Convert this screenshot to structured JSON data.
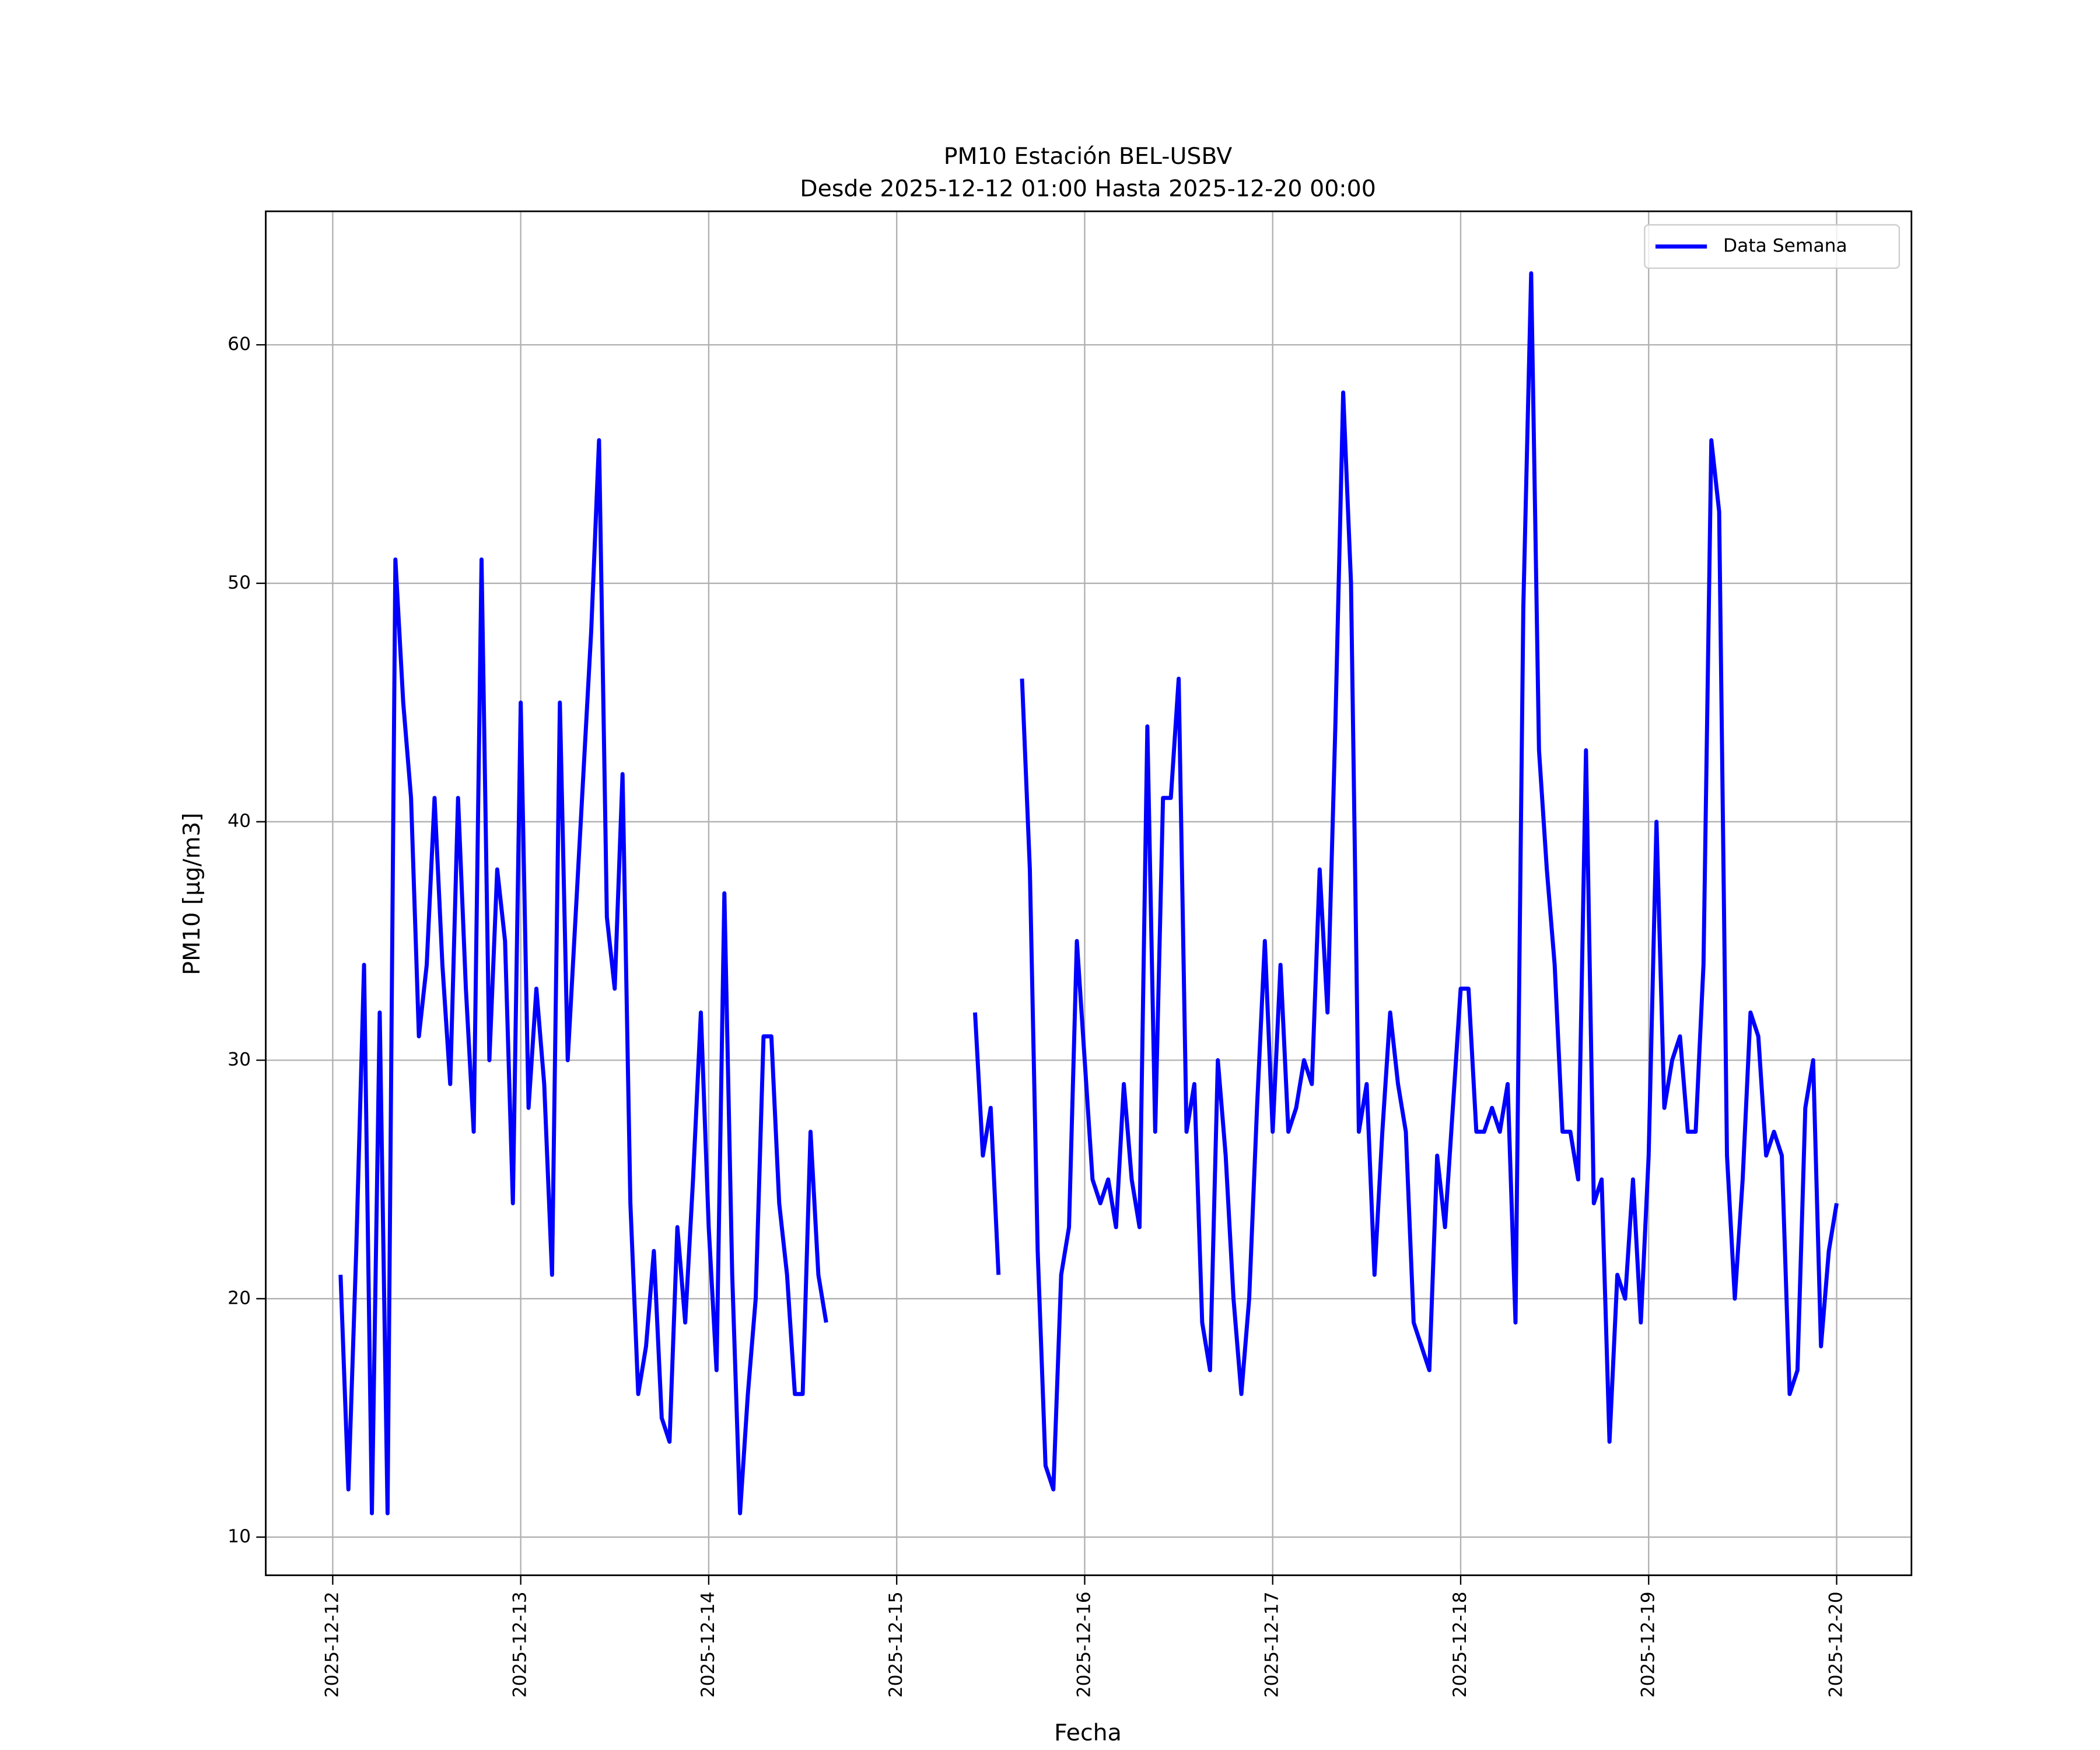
{
  "chart_data": {
    "type": "line",
    "title": [
      "PM10 Estación BEL-USBV",
      "Desde 2025-12-12 01:00 Hasta 2025-12-20 00:00"
    ],
    "xlabel": "Fecha",
    "ylabel": "PM10 [μg/m3]",
    "x": [
      "2025-12-12 01:00",
      "2025-12-12 02:00",
      "2025-12-12 03:00",
      "2025-12-12 04:00",
      "2025-12-12 05:00",
      "2025-12-12 06:00",
      "2025-12-12 07:00",
      "2025-12-12 08:00",
      "2025-12-12 09:00",
      "2025-12-12 10:00",
      "2025-12-12 11:00",
      "2025-12-12 12:00",
      "2025-12-12 13:00",
      "2025-12-12 14:00",
      "2025-12-12 15:00",
      "2025-12-12 16:00",
      "2025-12-12 17:00",
      "2025-12-12 18:00",
      "2025-12-12 19:00",
      "2025-12-12 20:00",
      "2025-12-12 21:00",
      "2025-12-12 22:00",
      "2025-12-12 23:00",
      "2025-12-13 00:00",
      "2025-12-13 01:00",
      "2025-12-13 02:00",
      "2025-12-13 03:00",
      "2025-12-13 04:00",
      "2025-12-13 05:00",
      "2025-12-13 06:00",
      "2025-12-13 07:00",
      "2025-12-13 08:00",
      "2025-12-13 09:00",
      "2025-12-13 10:00",
      "2025-12-13 11:00",
      "2025-12-13 12:00",
      "2025-12-13 13:00",
      "2025-12-13 14:00",
      "2025-12-13 15:00",
      "2025-12-13 16:00",
      "2025-12-13 17:00",
      "2025-12-13 18:00",
      "2025-12-13 19:00",
      "2025-12-13 20:00",
      "2025-12-13 21:00",
      "2025-12-13 22:00",
      "2025-12-13 23:00",
      "2025-12-14 00:00",
      "2025-12-14 01:00",
      "2025-12-14 02:00",
      "2025-12-14 03:00",
      "2025-12-14 04:00",
      "2025-12-14 05:00",
      "2025-12-14 06:00",
      "2025-12-14 07:00",
      "2025-12-14 08:00",
      "2025-12-14 09:00",
      "2025-12-14 10:00",
      "2025-12-14 11:00",
      "2025-12-14 12:00",
      "2025-12-14 13:00",
      "2025-12-14 14:00",
      "2025-12-14 15:00",
      "2025-12-14 16:00",
      "2025-12-14 17:00",
      "2025-12-14 18:00",
      "2025-12-14 19:00",
      "2025-12-14 20:00",
      "2025-12-14 21:00",
      "2025-12-14 22:00",
      "2025-12-14 23:00",
      "2025-12-15 00:00",
      "2025-12-15 01:00",
      "2025-12-15 02:00",
      "2025-12-15 03:00",
      "2025-12-15 04:00",
      "2025-12-15 05:00",
      "2025-12-15 06:00",
      "2025-12-15 07:00",
      "2025-12-15 08:00",
      "2025-12-15 09:00",
      "2025-12-15 10:00",
      "2025-12-15 11:00",
      "2025-12-15 12:00",
      "2025-12-15 13:00",
      "2025-12-15 14:00",
      "2025-12-15 15:00",
      "2025-12-15 16:00",
      "2025-12-15 17:00",
      "2025-12-15 18:00",
      "2025-12-15 19:00",
      "2025-12-15 20:00",
      "2025-12-15 21:00",
      "2025-12-15 22:00",
      "2025-12-15 23:00",
      "2025-12-16 00:00",
      "2025-12-16 01:00",
      "2025-12-16 02:00",
      "2025-12-16 03:00",
      "2025-12-16 04:00",
      "2025-12-16 05:00",
      "2025-12-16 06:00",
      "2025-12-16 07:00",
      "2025-12-16 08:00",
      "2025-12-16 09:00",
      "2025-12-16 10:00",
      "2025-12-16 11:00",
      "2025-12-16 12:00",
      "2025-12-16 13:00",
      "2025-12-16 14:00",
      "2025-12-16 15:00",
      "2025-12-16 16:00",
      "2025-12-16 17:00",
      "2025-12-16 18:00",
      "2025-12-16 19:00",
      "2025-12-16 20:00",
      "2025-12-16 21:00",
      "2025-12-16 22:00",
      "2025-12-16 23:00",
      "2025-12-17 00:00",
      "2025-12-17 01:00",
      "2025-12-17 02:00",
      "2025-12-17 03:00",
      "2025-12-17 04:00",
      "2025-12-17 05:00",
      "2025-12-17 06:00",
      "2025-12-17 07:00",
      "2025-12-17 08:00",
      "2025-12-17 09:00",
      "2025-12-17 10:00",
      "2025-12-17 11:00",
      "2025-12-17 12:00",
      "2025-12-17 13:00",
      "2025-12-17 14:00",
      "2025-12-17 15:00",
      "2025-12-17 16:00",
      "2025-12-17 17:00",
      "2025-12-17 18:00",
      "2025-12-17 19:00",
      "2025-12-17 20:00",
      "2025-12-17 21:00",
      "2025-12-17 22:00",
      "2025-12-17 23:00",
      "2025-12-18 00:00",
      "2025-12-18 01:00",
      "2025-12-18 02:00",
      "2025-12-18 03:00",
      "2025-12-18 04:00",
      "2025-12-18 05:00",
      "2025-12-18 06:00",
      "2025-12-18 07:00",
      "2025-12-18 08:00",
      "2025-12-18 09:00",
      "2025-12-18 10:00",
      "2025-12-18 11:00",
      "2025-12-18 12:00",
      "2025-12-18 13:00",
      "2025-12-18 14:00",
      "2025-12-18 15:00",
      "2025-12-18 16:00",
      "2025-12-18 17:00",
      "2025-12-18 18:00",
      "2025-12-18 19:00",
      "2025-12-18 20:00",
      "2025-12-18 21:00",
      "2025-12-18 22:00",
      "2025-12-18 23:00",
      "2025-12-19 00:00",
      "2025-12-19 01:00",
      "2025-12-19 02:00",
      "2025-12-19 03:00",
      "2025-12-19 04:00",
      "2025-12-19 05:00",
      "2025-12-19 06:00",
      "2025-12-19 07:00",
      "2025-12-19 08:00",
      "2025-12-19 09:00",
      "2025-12-19 10:00",
      "2025-12-19 11:00",
      "2025-12-19 12:00",
      "2025-12-19 13:00",
      "2025-12-19 14:00",
      "2025-12-19 15:00",
      "2025-12-19 16:00",
      "2025-12-19 17:00",
      "2025-12-19 18:00",
      "2025-12-19 19:00",
      "2025-12-19 20:00",
      "2025-12-19 21:00",
      "2025-12-19 22:00",
      "2025-12-19 23:00",
      "2025-12-20 00:00"
    ],
    "series": [
      {
        "name": "Data Semana",
        "color": "#0000ff",
        "values": [
          21,
          12,
          22,
          34,
          11,
          32,
          11,
          51,
          45,
          41,
          31,
          34,
          41,
          34,
          29,
          41,
          33,
          27,
          51,
          30,
          38,
          35,
          24,
          45,
          28,
          33,
          29,
          21,
          45,
          30,
          36,
          42,
          48,
          56,
          36,
          33,
          42,
          24,
          16,
          18,
          22,
          15,
          14,
          23,
          19,
          25,
          32,
          23,
          17,
          37,
          21,
          11,
          16,
          20,
          31,
          31,
          24,
          21,
          16,
          16,
          27,
          21,
          19,
          null,
          null,
          null,
          null,
          null,
          null,
          null,
          null,
          null,
          null,
          null,
          null,
          null,
          null,
          null,
          null,
          null,
          null,
          32,
          26,
          28,
          21,
          null,
          null,
          46,
          38,
          22,
          13,
          12,
          21,
          23,
          35,
          30,
          25,
          24,
          25,
          23,
          29,
          25,
          23,
          44,
          27,
          41,
          41,
          46,
          27,
          29,
          19,
          17,
          30,
          26,
          20,
          16,
          20,
          28,
          35,
          27,
          34,
          27,
          28,
          30,
          29,
          38,
          32,
          44,
          58,
          50,
          27,
          29,
          21,
          27,
          32,
          29,
          27,
          19,
          18,
          17,
          26,
          23,
          28,
          33,
          33,
          27,
          27,
          28,
          27,
          29,
          19,
          49,
          63,
          43,
          38,
          34,
          27,
          27,
          25,
          43,
          24,
          25,
          14,
          21,
          20,
          25,
          19,
          26,
          40,
          28,
          30,
          31,
          27,
          27,
          34,
          56,
          53,
          26,
          20,
          25,
          32,
          31,
          26,
          27,
          26,
          16,
          17,
          28,
          30,
          18,
          22,
          24
        ]
      }
    ],
    "xlim": [
      "2025-12-11 15:27",
      "2025-12-20 09:33"
    ],
    "xticks": [
      "2025-12-12",
      "2025-12-13",
      "2025-12-14",
      "2025-12-15",
      "2025-12-16",
      "2025-12-17",
      "2025-12-18",
      "2025-12-19",
      "2025-12-20"
    ],
    "ylim": [
      8.4,
      65.6
    ],
    "yticks": [
      10,
      20,
      30,
      40,
      50,
      60
    ],
    "grid": true,
    "legend": "upper right"
  }
}
